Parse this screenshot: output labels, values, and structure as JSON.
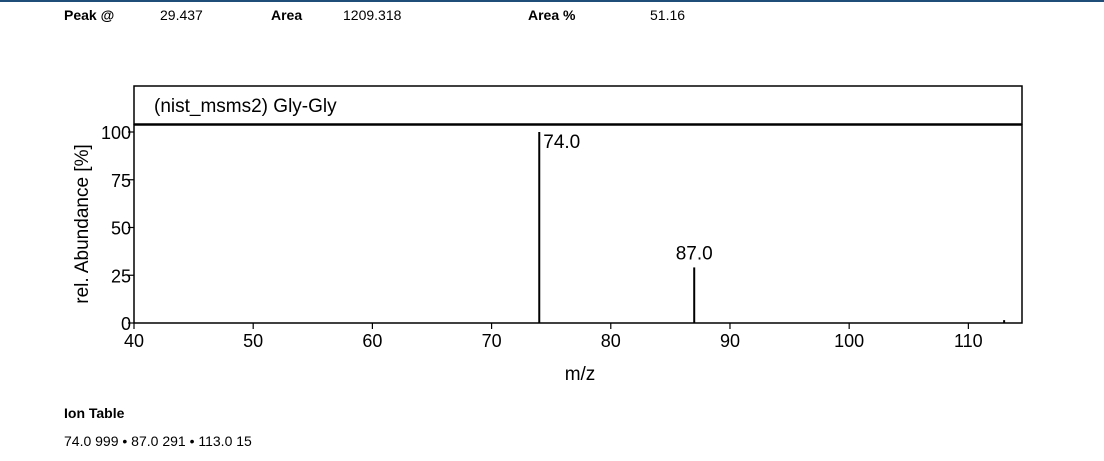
{
  "header": {
    "peak_label": "Peak @",
    "peak_value": "29.437",
    "area_label": "Area",
    "area_value": "1209.318",
    "area_pct_label": "Area %",
    "area_pct_value": "51.16"
  },
  "chart_data": {
    "type": "bar",
    "title": "(nist_msms2) Gly-Gly",
    "xlabel": "m/z",
    "ylabel": "rel. Abundance [%]",
    "xlim": [
      40,
      114.5
    ],
    "ylim": [
      0,
      100
    ],
    "xticks": [
      40,
      50,
      60,
      70,
      80,
      90,
      100,
      110
    ],
    "yticks": [
      0,
      25,
      50,
      75,
      100
    ],
    "peaks": [
      {
        "mz": 74.0,
        "abundance": 100,
        "label": "74.0"
      },
      {
        "mz": 87.0,
        "abundance": 29.1,
        "label": "87.0"
      },
      {
        "mz": 113.0,
        "abundance": 1.5,
        "label": ""
      }
    ]
  },
  "ion_table": {
    "title": "Ion Table",
    "text": "74.0 999 • 87.0 291 • 113.0 15"
  }
}
